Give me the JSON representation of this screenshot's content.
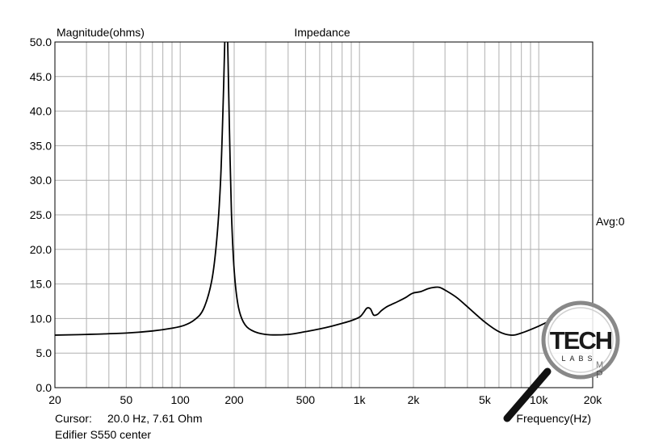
{
  "chart_data": {
    "type": "line",
    "title": "Impedance",
    "ylabel": "Magnitude(ohms)",
    "xlabel": "Frequency(Hz)",
    "x_scale": "log",
    "xlim": [
      20,
      20000
    ],
    "ylim": [
      0,
      50
    ],
    "grid": true,
    "y_ticks": [
      {
        "value": 0,
        "label": "0.0"
      },
      {
        "value": 5,
        "label": "5.0"
      },
      {
        "value": 10,
        "label": "10.0"
      },
      {
        "value": 15,
        "label": "15.0"
      },
      {
        "value": 20,
        "label": "20.0"
      },
      {
        "value": 25,
        "label": "25.0"
      },
      {
        "value": 30,
        "label": "30.0"
      },
      {
        "value": 35,
        "label": "35.0"
      },
      {
        "value": 40,
        "label": "40.0"
      },
      {
        "value": 45,
        "label": "45.0"
      },
      {
        "value": 50,
        "label": "50.0"
      }
    ],
    "x_ticks": [
      {
        "value": 20,
        "label": "20"
      },
      {
        "value": 50,
        "label": "50"
      },
      {
        "value": 100,
        "label": "100"
      },
      {
        "value": 200,
        "label": "200"
      },
      {
        "value": 500,
        "label": "500"
      },
      {
        "value": 1000,
        "label": "1k"
      },
      {
        "value": 2000,
        "label": "2k"
      },
      {
        "value": 5000,
        "label": "5k"
      },
      {
        "value": 10000,
        "label": "10k"
      },
      {
        "value": 20000,
        "label": "20k"
      }
    ],
    "series": [
      {
        "x": [
          20,
          30,
          50,
          70,
          90,
          105,
          120,
          135,
          150,
          160,
          168,
          174,
          178,
          181,
          184,
          188,
          193,
          200,
          210,
          225,
          250,
          300,
          400,
          500,
          600,
          700,
          800,
          900,
          1000,
          1050,
          1100,
          1150,
          1200,
          1260,
          1320,
          1400,
          1500,
          1650,
          1800,
          1900,
          2000,
          2200,
          2400,
          2600,
          2800,
          3100,
          3500,
          4000,
          5000,
          6000,
          7000,
          8000,
          10000,
          12000
        ],
        "y": [
          7.6,
          7.7,
          7.9,
          8.2,
          8.6,
          9.0,
          9.8,
          11.4,
          15.5,
          21.5,
          30.0,
          42.0,
          52.0,
          55.0,
          50.0,
          38.0,
          25.5,
          17.0,
          12.0,
          9.5,
          8.3,
          7.7,
          7.7,
          8.1,
          8.5,
          8.9,
          9.3,
          9.7,
          10.2,
          10.8,
          11.5,
          11.4,
          10.5,
          10.6,
          11.1,
          11.6,
          12.0,
          12.5,
          13.0,
          13.4,
          13.7,
          13.9,
          14.3,
          14.5,
          14.5,
          13.9,
          13.0,
          11.7,
          9.5,
          8.1,
          7.6,
          7.9,
          8.9,
          9.9
        ]
      }
    ],
    "annotations": {
      "avg": "Avg:0",
      "cursor_label": "Cursor:",
      "cursor_value": "20.0 Hz, 7.61 Ohm",
      "caption": "Edifier S550 center"
    }
  },
  "watermark": {
    "letters": "TECH",
    "sub": "LABS",
    "tail_m": "M",
    "tail_p": "P"
  },
  "colors": {
    "grid": "#b0b0b0",
    "curve": "#000000",
    "axis": "#000000"
  }
}
